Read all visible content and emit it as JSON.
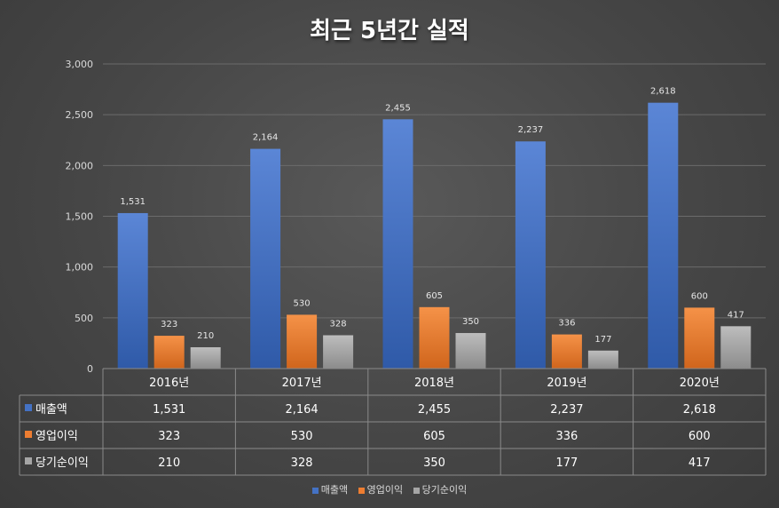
{
  "chart_data": {
    "type": "bar",
    "title": "최근 5년간 실적",
    "categories": [
      "2016년",
      "2017년",
      "2018년",
      "2019년",
      "2020년"
    ],
    "series": [
      {
        "name": "매출액",
        "color": "#4472c4",
        "values": [
          1531,
          2164,
          2455,
          2237,
          2618
        ]
      },
      {
        "name": "영업이익",
        "color": "#ed7d31",
        "values": [
          323,
          530,
          605,
          336,
          600
        ]
      },
      {
        "name": "당기순이익",
        "color": "#a5a5a5",
        "values": [
          210,
          328,
          350,
          177,
          417
        ]
      }
    ],
    "ylim": [
      0,
      3000
    ],
    "yticks": [
      0,
      500,
      1000,
      1500,
      2000,
      2500,
      3000
    ],
    "ytick_labels": [
      "0",
      "500",
      "1,000",
      "1,500",
      "2,000",
      "2,500",
      "3,000"
    ],
    "data_table": true,
    "grid": true,
    "legend_position": "bottom"
  }
}
